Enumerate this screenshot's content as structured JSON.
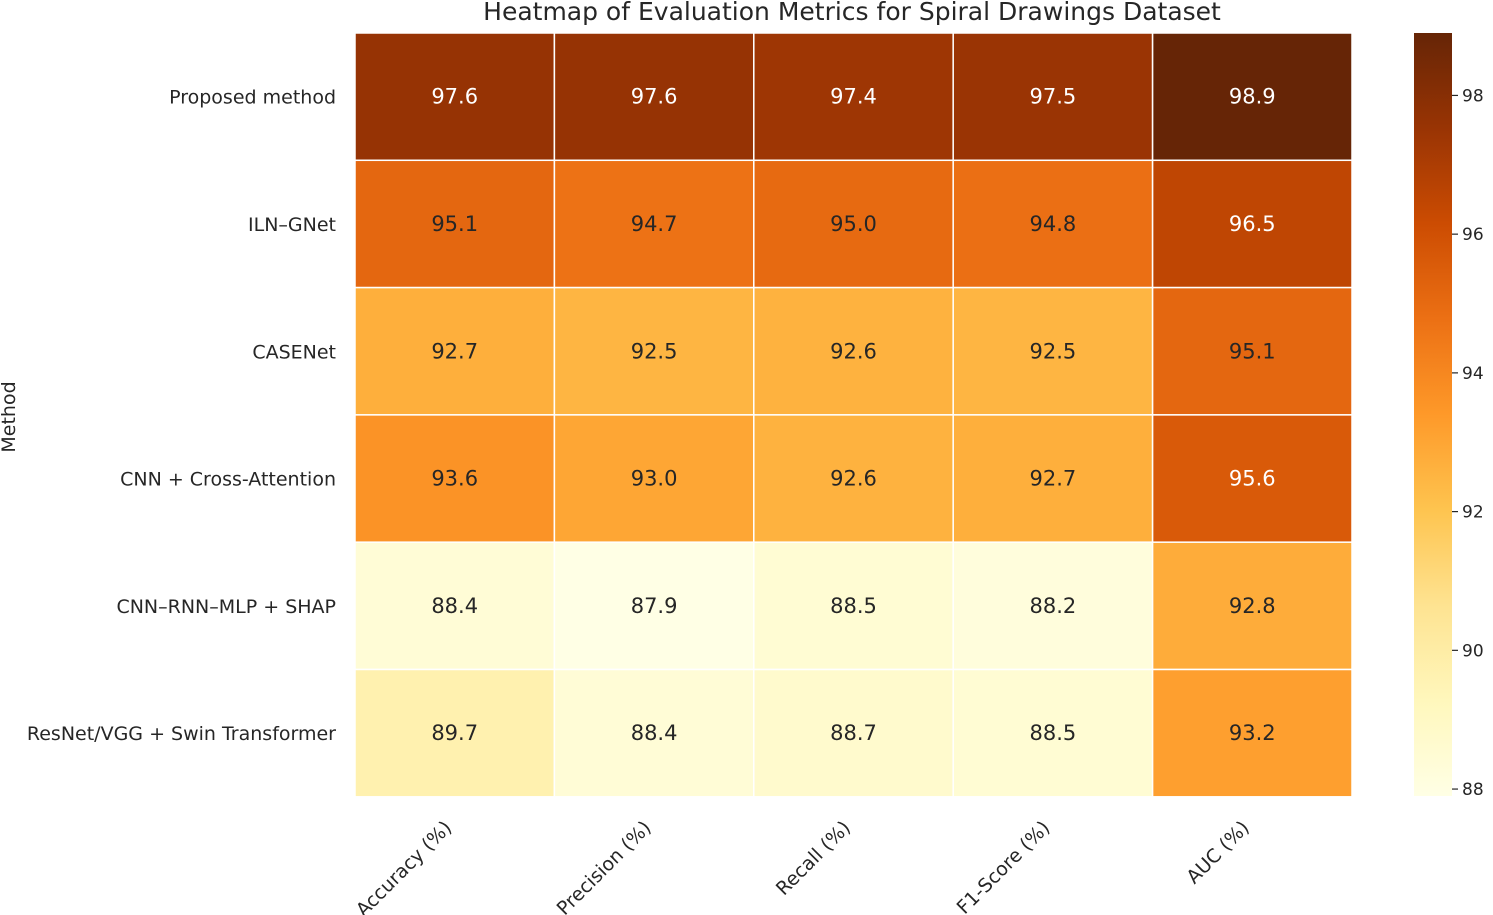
{
  "chart_data": {
    "type": "heatmap",
    "title": "Heatmap of Evaluation Metrics for Spiral Drawings Dataset",
    "ylabel": "Method",
    "xlabel": "",
    "rows": [
      "Proposed method",
      "ILN–GNet",
      "CASENet",
      "CNN + Cross-Attention",
      "CNN–RNN–MLP + SHAP",
      "ResNet/VGG + Swin Transformer"
    ],
    "columns": [
      "Accuracy (%)",
      "Precision (%)",
      "Recall (%)",
      "F1-Score (%)",
      "AUC (%)"
    ],
    "values": [
      [
        97.6,
        97.6,
        97.4,
        97.5,
        98.9
      ],
      [
        95.1,
        94.7,
        95.0,
        94.8,
        96.5
      ],
      [
        92.7,
        92.5,
        92.6,
        92.5,
        95.1
      ],
      [
        93.6,
        93.0,
        92.6,
        92.7,
        95.6
      ],
      [
        88.4,
        87.9,
        88.5,
        88.2,
        92.8
      ],
      [
        89.7,
        88.4,
        88.7,
        88.5,
        93.2
      ]
    ],
    "value_labels": [
      [
        "97.6",
        "97.6",
        "97.4",
        "97.5",
        "98.9"
      ],
      [
        "95.1",
        "94.7",
        "95.0",
        "94.8",
        "96.5"
      ],
      [
        "92.7",
        "92.5",
        "92.6",
        "92.5",
        "95.1"
      ],
      [
        "93.6",
        "93.0",
        "92.6",
        "92.7",
        "95.6"
      ],
      [
        "88.4",
        "87.9",
        "88.5",
        "88.2",
        "92.8"
      ],
      [
        "89.7",
        "88.4",
        "88.7",
        "88.5",
        "93.2"
      ]
    ],
    "colormap": "YlOrBr",
    "colormap_stops": [
      "#ffffe5",
      "#fff7bc",
      "#fee391",
      "#fec44f",
      "#fe9929",
      "#ec7014",
      "#cc4c02",
      "#993404",
      "#662506"
    ],
    "vmin": 87.9,
    "vmax": 98.9,
    "colorbar_ticks": [
      88,
      90,
      92,
      94,
      96,
      98
    ],
    "colorbar_tick_labels": [
      "88",
      "90",
      "92",
      "94",
      "96",
      "98"
    ]
  }
}
